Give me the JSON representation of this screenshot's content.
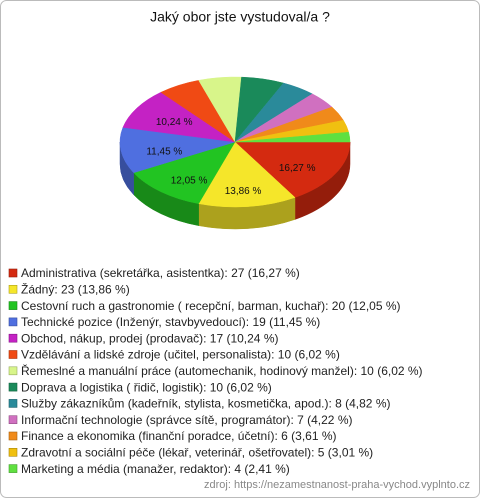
{
  "chart_data": {
    "type": "pie3d",
    "title": "Jaký obor jste vystudoval/a ?",
    "categories": [
      "Administrativa (sekretářka, asistentka): 27 (16,27 %)",
      "Žádný: 23 (13,86 %)",
      "Cestovní ruch a gastronomie ( recepční, barman, kuchař): 20 (12,05 %)",
      "Technické pozice (Inženýr, stavbyvedoucí): 19 (11,45 %)",
      "Obchod, nákup, prodej (prodavač): 17 (10,24 %)",
      "Vzdělávání a lidské zdroje (učitel, personalista): 10 (6,02 %)",
      "Řemeslné a manuální práce (automechanik, hodinový manžel): 10 (6,02 %)",
      "Doprava a logistika ( řidič, logistik): 10 (6,02 %)",
      "Služby zákazníkům (kadeřník, stylista, kosmetička, apod.): 8 (4,82 %)",
      "Informační technologie (správce sítě, programátor): 7 (4,22 %)",
      "Finance a ekonomika (finanční poradce, účetní): 6 (3,61 %)",
      "Zdravotní a sociální péče (lékař, veterinář, ošetřovatel): 5 (3,01 %)",
      "Marketing a média (manažer, redaktor): 4 (2,41 %)"
    ],
    "values": [
      27,
      23,
      20,
      19,
      17,
      10,
      10,
      10,
      8,
      7,
      6,
      5,
      4
    ],
    "value_labels": [
      "16,27 %",
      "13,86 %",
      "12,05 %",
      "11,45 %",
      "10,24 %",
      null,
      null,
      null,
      null,
      null,
      null,
      null,
      null
    ],
    "colors": [
      "#d42a10",
      "#f5e62a",
      "#22c422",
      "#4f6fe0",
      "#c422c4",
      "#f04a14",
      "#d8f58a",
      "#1a8a5a",
      "#2a8a9a",
      "#d070c0",
      "#f08a1a",
      "#f0c010",
      "#60e040"
    ],
    "source": "zdroj: https://nezamestnanost-praha-vychod.vyplnto.cz"
  }
}
